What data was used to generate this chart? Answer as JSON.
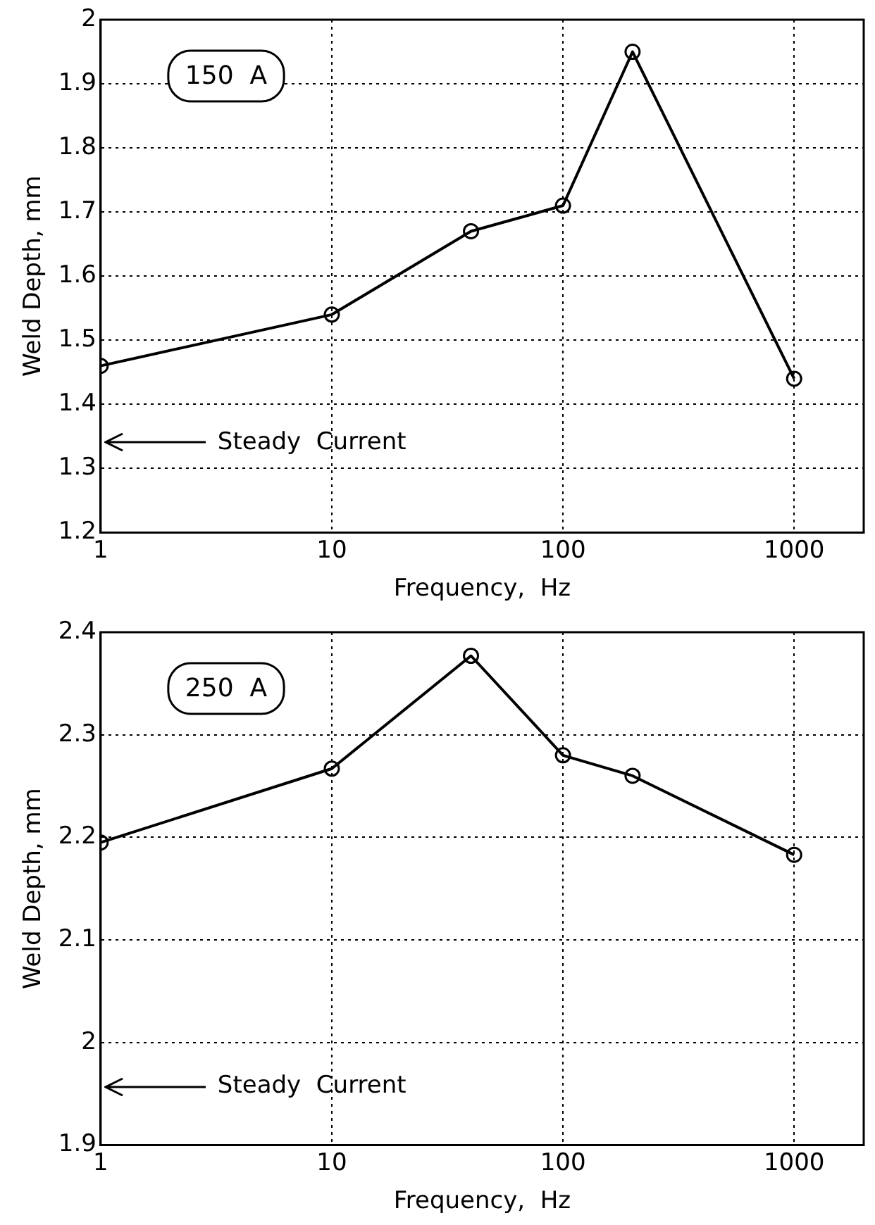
{
  "chart_data": [
    {
      "type": "line",
      "xlabel": "Frequency,  Hz",
      "ylabel": "Weld Depth, mm",
      "log": "x",
      "grid": true,
      "marker": "circle",
      "line_style": "solid",
      "x": [
        1,
        10,
        40,
        100,
        200,
        1000
      ],
      "series": [
        {
          "color": "#000000",
          "values": [
            1.46,
            1.54,
            1.67,
            1.71,
            1.95,
            1.44
          ]
        }
      ],
      "xlim": [
        1,
        2000
      ],
      "xticks": [
        1,
        10,
        100,
        1000
      ],
      "ylim": [
        1.2,
        2
      ],
      "yticks": [
        1.2,
        1.3,
        1.4,
        1.5,
        1.6,
        1.7,
        1.8,
        1.9,
        2
      ],
      "ref_lines": [
        {
          "axis": "y",
          "value": 1.34,
          "label": "Steady  Current"
        }
      ],
      "annotations": [
        "150  A"
      ]
    },
    {
      "type": "line",
      "xlabel": "Frequency,  Hz",
      "ylabel": "Weld Depth, mm",
      "log": "x",
      "grid": true,
      "marker": "circle",
      "line_style": "solid",
      "x": [
        1,
        10,
        40,
        100,
        200,
        1000
      ],
      "series": [
        {
          "color": "#000000",
          "values": [
            2.195,
            2.267,
            2.377,
            2.28,
            2.26,
            2.183
          ]
        }
      ],
      "xlim": [
        1,
        2000
      ],
      "xticks": [
        1,
        10,
        100,
        1000
      ],
      "ylim": [
        1.9,
        2.4
      ],
      "yticks": [
        1.9,
        2,
        2.1,
        2.2,
        2.3,
        2.4
      ],
      "ref_lines": [
        {
          "axis": "y",
          "value": 1.957,
          "label": "Steady  Current"
        }
      ],
      "annotations": [
        "250  A"
      ]
    }
  ]
}
